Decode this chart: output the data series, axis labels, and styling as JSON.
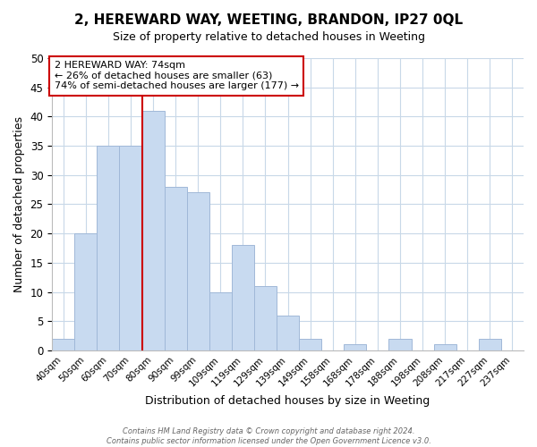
{
  "title": "2, HEREWARD WAY, WEETING, BRANDON, IP27 0QL",
  "subtitle": "Size of property relative to detached houses in Weeting",
  "xlabel": "Distribution of detached houses by size in Weeting",
  "ylabel": "Number of detached properties",
  "bar_labels": [
    "40sqm",
    "50sqm",
    "60sqm",
    "70sqm",
    "80sqm",
    "90sqm",
    "99sqm",
    "109sqm",
    "119sqm",
    "129sqm",
    "139sqm",
    "149sqm",
    "158sqm",
    "168sqm",
    "178sqm",
    "188sqm",
    "198sqm",
    "208sqm",
    "217sqm",
    "227sqm",
    "237sqm"
  ],
  "bar_heights": [
    2,
    20,
    35,
    35,
    41,
    28,
    27,
    10,
    18,
    11,
    6,
    2,
    0,
    1,
    0,
    2,
    0,
    1,
    0,
    2,
    0
  ],
  "bar_color": "#c8daf0",
  "bar_edge_color": "#a0b8d8",
  "vline_color": "#cc0000",
  "vline_position": 3.5,
  "annotation_lines": [
    "2 HEREWARD WAY: 74sqm",
    "← 26% of detached houses are smaller (63)",
    "74% of semi-detached houses are larger (177) →"
  ],
  "ylim": [
    0,
    50
  ],
  "yticks": [
    0,
    5,
    10,
    15,
    20,
    25,
    30,
    35,
    40,
    45,
    50
  ],
  "footer_lines": [
    "Contains HM Land Registry data © Crown copyright and database right 2024.",
    "Contains public sector information licensed under the Open Government Licence v3.0."
  ],
  "background_color": "#ffffff",
  "grid_color": "#c8d8e8"
}
